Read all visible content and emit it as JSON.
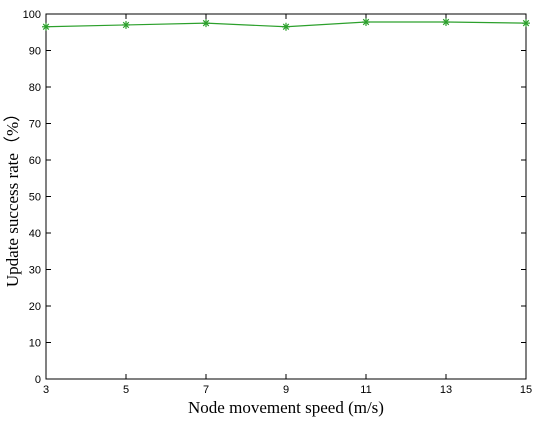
{
  "chart_data": {
    "type": "line",
    "title": "",
    "xlabel": "Node movement speed (m/s)",
    "ylabel": "Update success rate（%）",
    "x": [
      3,
      5,
      7,
      9,
      11,
      13,
      15
    ],
    "xlim": [
      3,
      15
    ],
    "ylim": [
      0,
      100
    ],
    "xticks": [
      "3",
      "5",
      "7",
      "9",
      "11",
      "13",
      "15"
    ],
    "yticks": [
      "0",
      "10",
      "20",
      "30",
      "40",
      "50",
      "60",
      "70",
      "80",
      "90",
      "100"
    ],
    "series": [
      {
        "values": [
          96.5,
          97,
          97.5,
          96.5,
          97.8,
          97.8,
          97.5
        ],
        "color": "#2ca02c",
        "marker": "asterisk"
      }
    ],
    "grid": false,
    "legend": "none"
  }
}
